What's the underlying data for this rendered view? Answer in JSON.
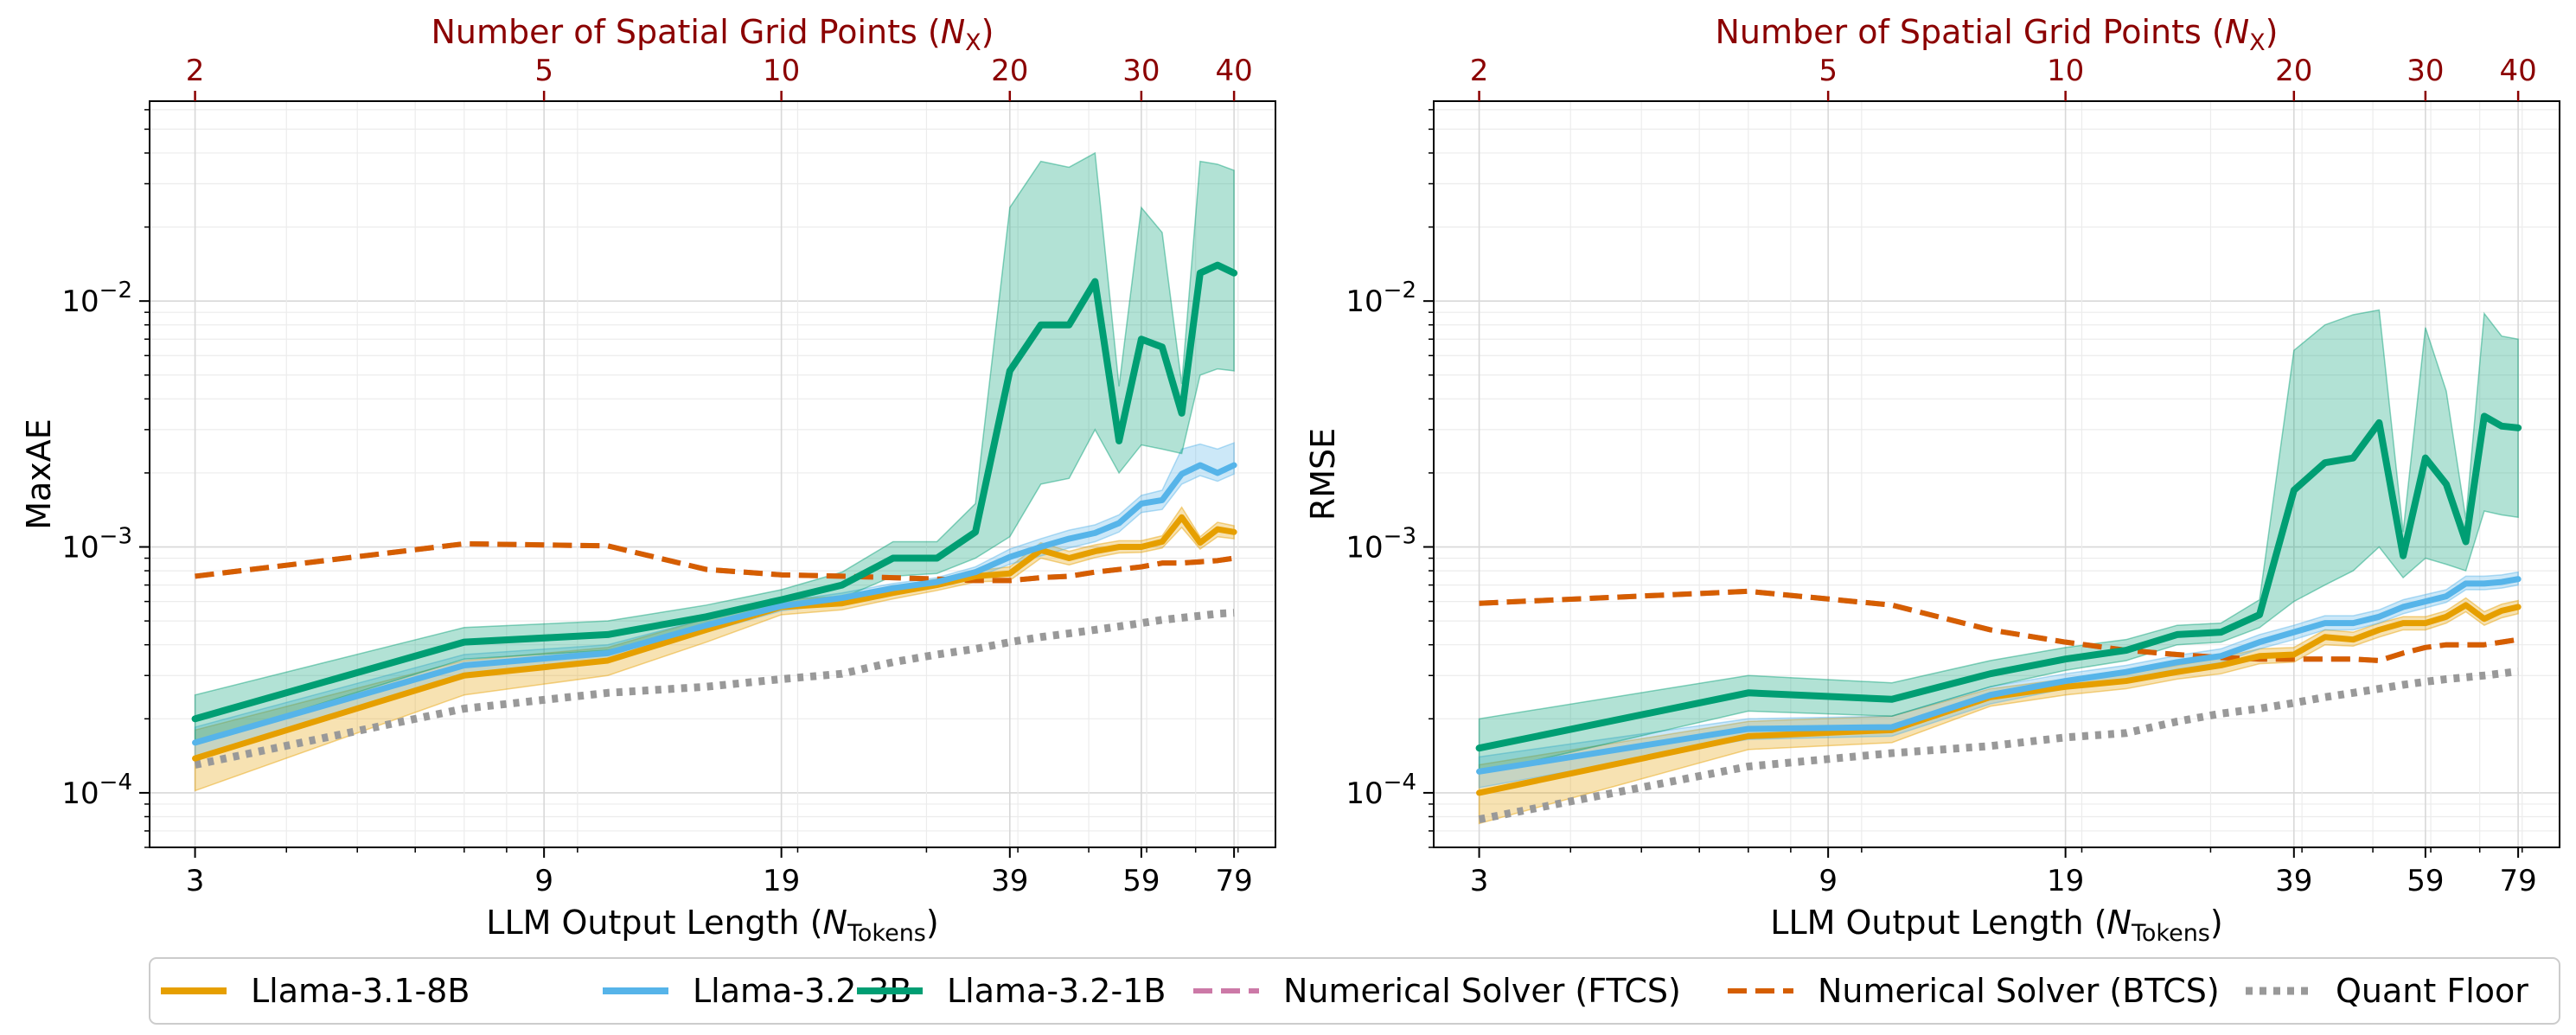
{
  "chart_data": [
    {
      "type": "line",
      "panel": "left",
      "ylabel": "MaxAE",
      "xlabel_prefix": "LLM Output Length (",
      "xlabel_var": "N",
      "xlabel_sub": "Tokens",
      "xlabel_suffix": ")",
      "top_xlabel_prefix": "Number of Spatial Grid Points (",
      "top_xlabel_var": "N",
      "top_xlabel_sub": "X",
      "top_xlabel_suffix": ")",
      "xscale": "log",
      "yscale": "log",
      "xlim": [
        2.6,
        90
      ],
      "ylim": [
        6e-05,
        0.065
      ],
      "x_ticks": [
        3,
        9,
        19,
        39,
        59,
        79
      ],
      "x_tick_labels": [
        "3",
        "9",
        "19",
        "39",
        "59",
        "79"
      ],
      "top_ticks_ntokens": [
        3,
        9,
        19,
        39,
        59,
        79
      ],
      "top_tick_labels": [
        "2",
        "5",
        "10",
        "20",
        "30",
        "40"
      ],
      "y_ticks": [
        0.0001,
        0.001,
        0.01
      ],
      "y_tick_labels": [
        {
          "base": "10",
          "exp": "−4"
        },
        {
          "base": "10",
          "exp": "−3"
        },
        {
          "base": "10",
          "exp": "−2"
        }
      ],
      "x": [
        3,
        7,
        11,
        15,
        19,
        23,
        27,
        31,
        35,
        39,
        43,
        47,
        51,
        55,
        59,
        63,
        67,
        71,
        75,
        79
      ],
      "series": [
        {
          "name": "Llama-3.1-8B",
          "color": "#e69f00",
          "style": "solid",
          "width": 7,
          "values": [
            0.000138,
            0.0003,
            0.000345,
            0.00046,
            0.00057,
            0.00059,
            0.00065,
            0.0007,
            0.00076,
            0.00078,
            0.00097,
            0.0009,
            0.00096,
            0.001,
            0.001,
            0.00105,
            0.00132,
            0.00104,
            0.00118,
            0.00115
          ],
          "band_low": [
            0.000102,
            0.00025,
            0.0003,
            0.00041,
            0.00053,
            0.000555,
            0.000615,
            0.000665,
            0.00072,
            0.00073,
            0.0009,
            0.000845,
            0.000905,
            0.000945,
            0.00095,
            0.00099,
            0.0012,
            0.00098,
            0.0011,
            0.00108
          ],
          "band_high": [
            0.00018,
            0.000345,
            0.00039,
            0.00051,
            0.00061,
            0.00063,
            0.00069,
            0.00074,
            0.0008,
            0.00083,
            0.00104,
            0.00096,
            0.00102,
            0.00106,
            0.00106,
            0.00111,
            0.00145,
            0.0011,
            0.00126,
            0.00122
          ]
        },
        {
          "name": "Llama-3.2-3B",
          "color": "#56b4e9",
          "style": "solid",
          "width": 7,
          "values": [
            0.00016,
            0.00033,
            0.00037,
            0.00048,
            0.000575,
            0.00062,
            0.00068,
            0.00072,
            0.00079,
            0.00091,
            0.001,
            0.00108,
            0.00114,
            0.00125,
            0.0015,
            0.00155,
            0.00198,
            0.00215,
            0.002,
            0.00215
          ],
          "band_low": [
            0.000135,
            0.0003,
            0.00034,
            0.00045,
            0.00055,
            0.00059,
            0.00065,
            0.00069,
            0.00075,
            0.00085,
            0.00092,
            0.00099,
            0.00105,
            0.00115,
            0.00138,
            0.00142,
            0.0018,
            0.00195,
            0.00185,
            0.00198
          ],
          "band_high": [
            0.000185,
            0.000365,
            0.0004,
            0.00051,
            0.0006,
            0.00065,
            0.00071,
            0.00075,
            0.00083,
            0.00098,
            0.00108,
            0.00117,
            0.00123,
            0.00135,
            0.00162,
            0.0017,
            0.0025,
            0.00262,
            0.0025,
            0.00265
          ]
        },
        {
          "name": "Llama-3.2-1B",
          "color": "#009e73",
          "style": "solid",
          "width": 8,
          "values": [
            0.0002,
            0.00041,
            0.00044,
            0.00052,
            0.00061,
            0.0007,
            0.0009,
            0.0009,
            0.00115,
            0.0052,
            0.008,
            0.008,
            0.012,
            0.0027,
            0.007,
            0.0065,
            0.0035,
            0.013,
            0.014,
            0.013
          ],
          "band_low": [
            0.00016,
            0.00035,
            0.00038,
            0.00046,
            0.00056,
            0.00062,
            0.00076,
            0.00078,
            0.0009,
            0.0011,
            0.0018,
            0.0019,
            0.003,
            0.002,
            0.0026,
            0.0025,
            0.0024,
            0.005,
            0.0053,
            0.0052
          ],
          "band_high": [
            0.00025,
            0.00047,
            0.0005,
            0.00058,
            0.00067,
            0.00079,
            0.00105,
            0.00105,
            0.0015,
            0.024,
            0.037,
            0.035,
            0.04,
            0.0045,
            0.024,
            0.019,
            0.0046,
            0.037,
            0.036,
            0.034
          ]
        },
        {
          "name": "Numerical Solver (FTCS)",
          "color": "#cc79a7",
          "style": "dashed",
          "width": 6,
          "values": [
            0.00076,
            0.00103,
            0.00101,
            0.00081,
            0.00077,
            0.00076,
            0.00075,
            0.00074,
            0.00073,
            0.00073,
            0.00075,
            0.00076,
            0.00079,
            0.00081,
            0.00083,
            0.00086,
            0.00086,
            0.00087,
            0.00088,
            0.0009
          ]
        },
        {
          "name": "Numerical Solver (BTCS)",
          "color": "#d55e00",
          "style": "dashed",
          "width": 6,
          "values": [
            0.00076,
            0.00103,
            0.00101,
            0.00081,
            0.00077,
            0.00076,
            0.00075,
            0.00074,
            0.00073,
            0.00073,
            0.00075,
            0.00076,
            0.00079,
            0.00081,
            0.00083,
            0.00086,
            0.00086,
            0.00087,
            0.00088,
            0.0009
          ]
        },
        {
          "name": "Quant Floor",
          "color": "#999999",
          "style": "dotted",
          "width": 9,
          "values": [
            0.00013,
            0.00022,
            0.000255,
            0.00027,
            0.00029,
            0.000305,
            0.00034,
            0.000365,
            0.000385,
            0.00041,
            0.00043,
            0.000445,
            0.00046,
            0.000475,
            0.00049,
            0.000505,
            0.000515,
            0.000525,
            0.000535,
            0.00054
          ]
        }
      ]
    },
    {
      "type": "line",
      "panel": "right",
      "ylabel": "RMSE",
      "xlabel_prefix": "LLM Output Length (",
      "xlabel_var": "N",
      "xlabel_sub": "Tokens",
      "xlabel_suffix": ")",
      "top_xlabel_prefix": "Number of Spatial Grid Points (",
      "top_xlabel_var": "N",
      "top_xlabel_sub": "X",
      "top_xlabel_suffix": ")",
      "xscale": "log",
      "yscale": "log",
      "xlim": [
        2.6,
        90
      ],
      "ylim": [
        6e-05,
        0.065
      ],
      "x_ticks": [
        3,
        9,
        19,
        39,
        59,
        79
      ],
      "x_tick_labels": [
        "3",
        "9",
        "19",
        "39",
        "59",
        "79"
      ],
      "top_ticks_ntokens": [
        3,
        9,
        19,
        39,
        59,
        79
      ],
      "top_tick_labels": [
        "2",
        "5",
        "10",
        "20",
        "30",
        "40"
      ],
      "y_ticks": [
        0.0001,
        0.001,
        0.01
      ],
      "y_tick_labels": [
        {
          "base": "10",
          "exp": "−4"
        },
        {
          "base": "10",
          "exp": "−3"
        },
        {
          "base": "10",
          "exp": "−2"
        }
      ],
      "x": [
        3,
        7,
        11,
        15,
        19,
        23,
        27,
        31,
        35,
        39,
        43,
        47,
        51,
        55,
        59,
        63,
        67,
        71,
        75,
        79
      ],
      "series": [
        {
          "name": "Llama-3.1-8B",
          "color": "#e69f00",
          "style": "solid",
          "width": 7,
          "values": [
            0.0001,
            0.00017,
            0.00018,
            0.000245,
            0.00027,
            0.000285,
            0.00031,
            0.00033,
            0.00036,
            0.000365,
            0.00043,
            0.00042,
            0.00046,
            0.00049,
            0.00049,
            0.00052,
            0.00058,
            0.00051,
            0.00055,
            0.00057
          ],
          "band_low": [
            7.5e-05,
            0.00015,
            0.00016,
            0.000225,
            0.00025,
            0.000265,
            0.00029,
            0.000305,
            0.000335,
            0.00034,
            0.0004,
            0.000395,
            0.00043,
            0.00046,
            0.00046,
            0.00049,
            0.000545,
            0.00048,
            0.000515,
            0.000535
          ],
          "band_high": [
            0.00013,
            0.000195,
            0.000205,
            0.000265,
            0.00029,
            0.000305,
            0.00033,
            0.000355,
            0.000385,
            0.00039,
            0.00046,
            0.00045,
            0.00049,
            0.00052,
            0.00052,
            0.00055,
            0.00062,
            0.000545,
            0.000585,
            0.000605
          ]
        },
        {
          "name": "Llama-3.2-3B",
          "color": "#56b4e9",
          "style": "solid",
          "width": 7,
          "values": [
            0.000122,
            0.000182,
            0.000185,
            0.00025,
            0.000285,
            0.00031,
            0.00034,
            0.00036,
            0.00041,
            0.00045,
            0.00049,
            0.00049,
            0.00052,
            0.00057,
            0.0006,
            0.00063,
            0.00071,
            0.00071,
            0.00072,
            0.00074
          ],
          "band_low": [
            0.000105,
            0.000165,
            0.00017,
            0.00023,
            0.000265,
            0.00029,
            0.000318,
            0.000338,
            0.000385,
            0.00042,
            0.00046,
            0.00046,
            0.00049,
            0.000535,
            0.000565,
            0.000595,
            0.00067,
            0.00067,
            0.00068,
            0.0007
          ],
          "band_high": [
            0.00014,
            0.0002,
            0.000205,
            0.00027,
            0.000305,
            0.00033,
            0.000362,
            0.000385,
            0.00044,
            0.00048,
            0.000525,
            0.000525,
            0.000555,
            0.00061,
            0.00064,
            0.00067,
            0.00076,
            0.00076,
            0.00077,
            0.00079
          ]
        },
        {
          "name": "Llama-3.2-1B",
          "color": "#009e73",
          "style": "solid",
          "width": 8,
          "values": [
            0.000152,
            0.000255,
            0.00024,
            0.000305,
            0.00035,
            0.00038,
            0.00044,
            0.00045,
            0.00053,
            0.0017,
            0.0022,
            0.0023,
            0.0032,
            0.00092,
            0.0023,
            0.0018,
            0.00105,
            0.0034,
            0.0031,
            0.00305
          ],
          "band_low": [
            0.00012,
            0.000215,
            0.000205,
            0.00027,
            0.000315,
            0.000345,
            0.0004,
            0.00041,
            0.00047,
            0.0006,
            0.0007,
            0.0008,
            0.001,
            0.00075,
            0.0009,
            0.00085,
            0.0008,
            0.0014,
            0.00135,
            0.00132
          ],
          "band_high": [
            0.0002,
            0.0003,
            0.00028,
            0.000345,
            0.00039,
            0.00042,
            0.00048,
            0.00049,
            0.00061,
            0.0063,
            0.008,
            0.0088,
            0.0092,
            0.00115,
            0.0078,
            0.0043,
            0.0013,
            0.0089,
            0.0072,
            0.007
          ]
        },
        {
          "name": "Numerical Solver (FTCS)",
          "color": "#cc79a7",
          "style": "dashed",
          "width": 6,
          "values": [
            0.00059,
            0.00066,
            0.00058,
            0.00046,
            0.00041,
            0.00038,
            0.000365,
            0.000355,
            0.00035,
            0.00035,
            0.00035,
            0.00035,
            0.000345,
            0.00037,
            0.00039,
            0.0004,
            0.0004,
            0.0004,
            0.00041,
            0.00042
          ]
        },
        {
          "name": "Numerical Solver (BTCS)",
          "color": "#d55e00",
          "style": "dashed",
          "width": 6,
          "values": [
            0.00059,
            0.00066,
            0.00058,
            0.00046,
            0.00041,
            0.00038,
            0.000365,
            0.000355,
            0.00035,
            0.00035,
            0.00035,
            0.00035,
            0.000345,
            0.00037,
            0.00039,
            0.0004,
            0.0004,
            0.0004,
            0.00041,
            0.00042
          ]
        },
        {
          "name": "Quant Floor",
          "color": "#999999",
          "style": "dotted",
          "width": 9,
          "values": [
            7.8e-05,
            0.000128,
            0.000145,
            0.000155,
            0.000168,
            0.000175,
            0.000195,
            0.00021,
            0.00022,
            0.000232,
            0.000245,
            0.000255,
            0.000265,
            0.000275,
            0.000283,
            0.00029,
            0.000295,
            0.0003,
            0.000306,
            0.000312
          ]
        }
      ]
    }
  ],
  "legend": [
    {
      "label": "Llama-3.1-8B",
      "color": "#e69f00",
      "style": "solid"
    },
    {
      "label": "Llama-3.2-3B",
      "color": "#56b4e9",
      "style": "solid"
    },
    {
      "label": "Llama-3.2-1B",
      "color": "#009e73",
      "style": "solid"
    },
    {
      "label": "Numerical Solver (FTCS)",
      "color": "#cc79a7",
      "style": "dashed"
    },
    {
      "label": "Numerical Solver (BTCS)",
      "color": "#d55e00",
      "style": "dashed"
    },
    {
      "label": "Quant Floor",
      "color": "#999999",
      "style": "dotted"
    }
  ]
}
